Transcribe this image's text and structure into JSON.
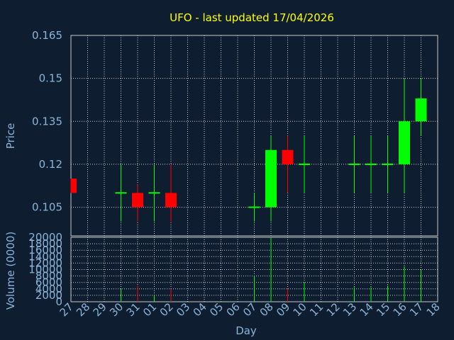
{
  "chart_data": {
    "type": "candlestick",
    "title": "UFO - last updated 17/04/2026",
    "ylabel": "Price",
    "volume_label": "Volume (0000)",
    "xlabel": "Day",
    "price_ylim": [
      0.095,
      0.165
    ],
    "price_ticks": [
      "0.105",
      "0.12",
      "0.135",
      "0.15",
      "0.165"
    ],
    "volume_ylim": [
      0,
      20000
    ],
    "volume_ticks": [
      "0",
      "2000",
      "4000",
      "6000",
      "8000",
      "10000",
      "12000",
      "14000",
      "16000",
      "18000",
      "20000"
    ],
    "days": [
      "27",
      "28",
      "29",
      "30",
      "31",
      "01",
      "02",
      "03",
      "04",
      "05",
      "06",
      "07",
      "08",
      "09",
      "10",
      "11",
      "12",
      "13",
      "14",
      "15",
      "16",
      "17",
      "18"
    ],
    "candles": [
      {
        "day": "27",
        "open": 0.115,
        "high": 0.115,
        "low": 0.11,
        "close": 0.11,
        "volume": 0
      },
      {
        "day": "30",
        "open": 0.11,
        "high": 0.12,
        "low": 0.1,
        "close": 0.11,
        "volume": 4000
      },
      {
        "day": "31",
        "open": 0.11,
        "high": 0.113,
        "low": 0.1,
        "close": 0.105,
        "volume": 5000
      },
      {
        "day": "01",
        "open": 0.11,
        "high": 0.12,
        "low": 0.1,
        "close": 0.11,
        "volume": 2000
      },
      {
        "day": "02",
        "open": 0.11,
        "high": 0.12,
        "low": 0.1,
        "close": 0.105,
        "volume": 4000
      },
      {
        "day": "07",
        "open": 0.105,
        "high": 0.11,
        "low": 0.1,
        "close": 0.105,
        "volume": 8000
      },
      {
        "day": "08",
        "open": 0.105,
        "high": 0.13,
        "low": 0.1,
        "close": 0.125,
        "volume": 20000
      },
      {
        "day": "09",
        "open": 0.125,
        "high": 0.13,
        "low": 0.11,
        "close": 0.12,
        "volume": 4000
      },
      {
        "day": "10",
        "open": 0.12,
        "high": 0.13,
        "low": 0.11,
        "close": 0.12,
        "volume": 6000
      },
      {
        "day": "13",
        "open": 0.12,
        "high": 0.13,
        "low": 0.11,
        "close": 0.12,
        "volume": 4500
      },
      {
        "day": "14",
        "open": 0.12,
        "high": 0.13,
        "low": 0.11,
        "close": 0.12,
        "volume": 4500
      },
      {
        "day": "15",
        "open": 0.12,
        "high": 0.13,
        "low": 0.11,
        "close": 0.12,
        "volume": 5000
      },
      {
        "day": "16",
        "open": 0.12,
        "high": 0.15,
        "low": 0.11,
        "close": 0.135,
        "volume": 11000
      },
      {
        "day": "17",
        "open": 0.135,
        "high": 0.15,
        "low": 0.13,
        "close": 0.143,
        "volume": 10000
      }
    ],
    "grid": true,
    "colors": {
      "background": "#0e1e30",
      "plot_background": "#0e1e30",
      "grid": "#c8c8c8",
      "up": "#00ff00",
      "down": "#ff0000",
      "title": "#ffff00",
      "text": "#8ab4d8",
      "frame": "#c8c8c8"
    }
  }
}
